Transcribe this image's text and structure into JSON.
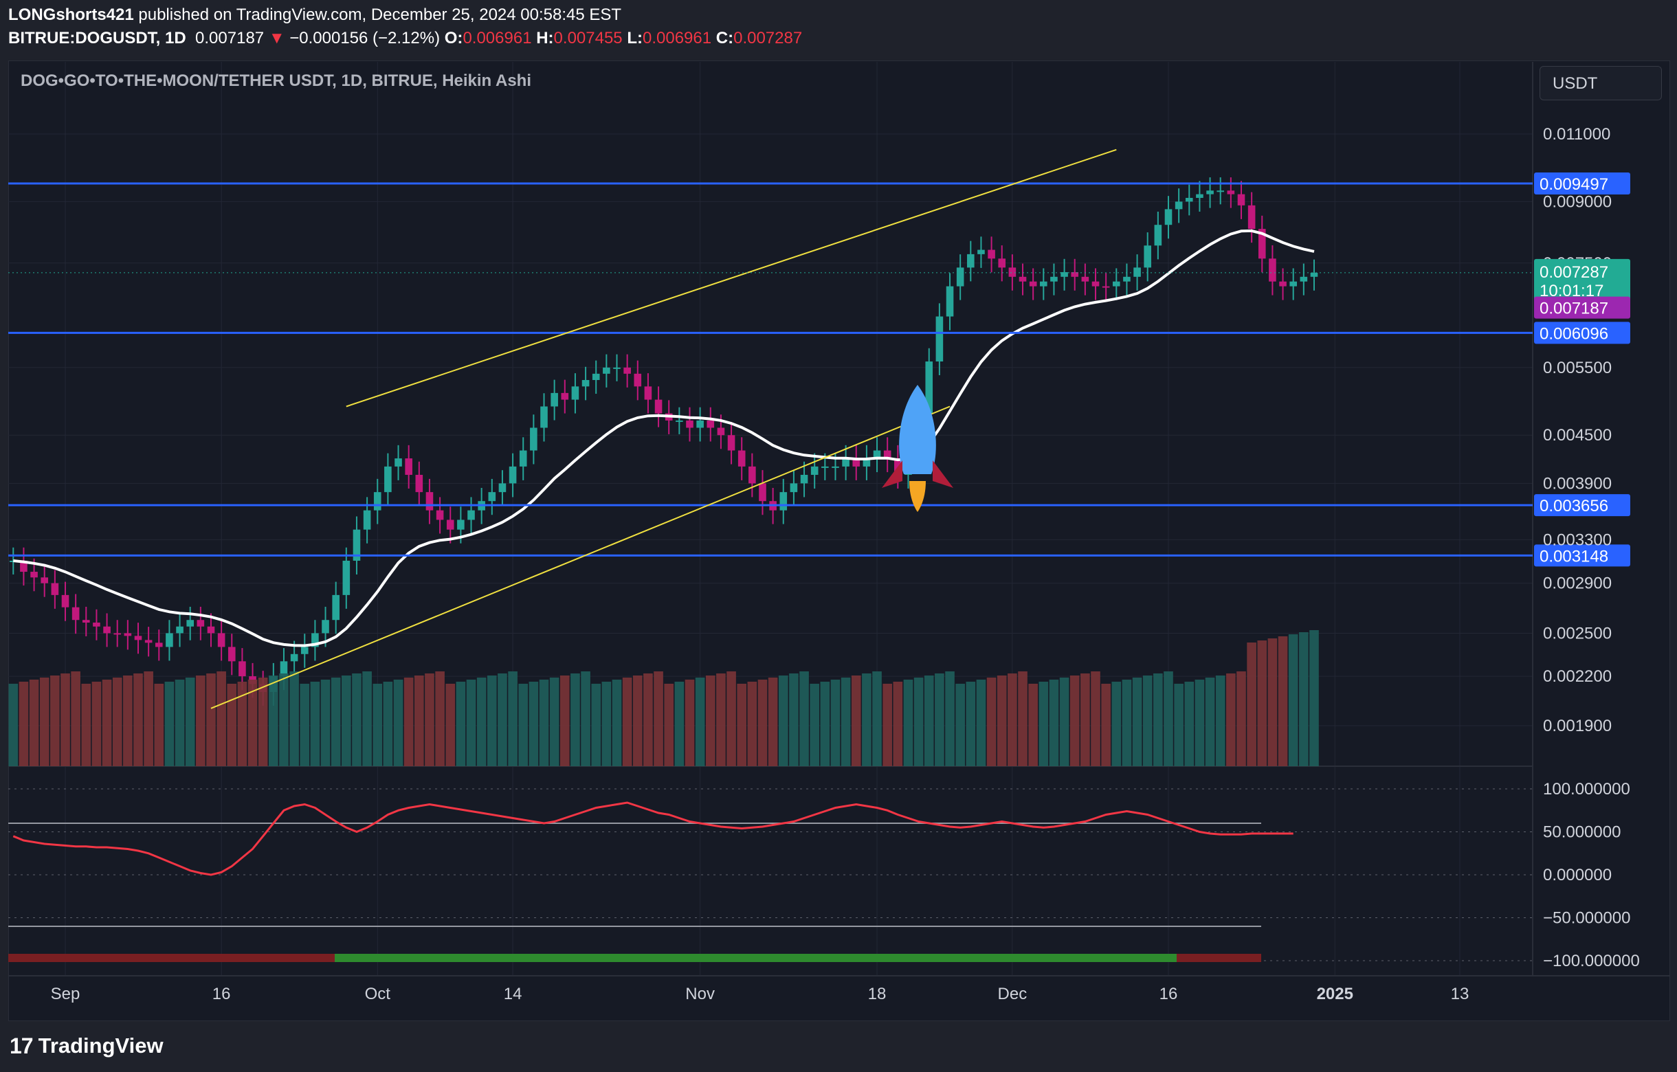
{
  "header": {
    "author": "LONGshorts421",
    "published_text": "published on TradingView.com, December 25, 2024 00:58:45 EST",
    "symbol": "BITRUE:DOGUSDT, 1D",
    "last": "0.007187",
    "change_arrow": "▼",
    "change": "−0.000156 (−2.12%)",
    "o_label": "O:",
    "o": "0.006961",
    "h_label": "H:",
    "h": "0.007455",
    "l_label": "L:",
    "l": "0.006961",
    "c_label": "C:",
    "c": "0.007287"
  },
  "chart_title": "DOG•GO•TO•THE•MOON/TETHER USDT, 1D, BITRUE, Heikin Ashi",
  "currency": "USDT",
  "footer": {
    "logo": "17",
    "brand": "TradingView"
  },
  "colors": {
    "bull": "#26a69a",
    "bear": "#c2187c",
    "level": "#2962ff",
    "trend": "#f0e040",
    "bg": "#161a25"
  },
  "chart_data": [
    {
      "type": "candlestick",
      "subtype": "Heikin Ashi",
      "title": "DOG•GO•TO•THE•MOON/TETHER USDT, 1D, BITRUE, Heikin Ashi",
      "y_scale": "log",
      "y_ticks": [
        0.0019,
        0.0022,
        0.0025,
        0.0029,
        0.0033,
        0.0039,
        0.0045,
        0.0055,
        0.0075,
        0.009,
        0.011
      ],
      "y_tick_labels": [
        "0.001900",
        "0.002200",
        "0.002500",
        "0.002900",
        "0.003300",
        "0.003900",
        "0.004500",
        "0.005500",
        "0.007500",
        "0.009000",
        "0.011000"
      ],
      "x_tick_labels": [
        "Sep",
        "16",
        "Oct",
        "14",
        "Nov",
        "18",
        "Dec",
        "16",
        "2025",
        "13"
      ],
      "x_tick_dates": [
        "2024-09-01",
        "2024-09-16",
        "2024-10-01",
        "2024-10-14",
        "2024-11-01",
        "2024-11-18",
        "2024-12-01",
        "2024-12-16",
        "2025-01-01",
        "2025-01-13"
      ],
      "horizontal_levels": [
        0.009497,
        0.006096,
        0.003656,
        0.003148
      ],
      "level_labels": [
        "0.009497",
        "0.006096",
        "0.003656",
        "0.003148"
      ],
      "price_labels": [
        {
          "value": 0.007287,
          "text": "0.007287",
          "countdown": "10:01:17",
          "color": "#22ab94"
        },
        {
          "value": 0.007187,
          "text": "0.007187",
          "color": "#9c27b0"
        }
      ],
      "last_close": 0.007287,
      "close_series_start": "2024-08-27",
      "close": [
        0.0031,
        0.003,
        0.00295,
        0.0029,
        0.0028,
        0.0027,
        0.0026,
        0.00258,
        0.00255,
        0.0025,
        0.0025,
        0.00248,
        0.00245,
        0.00243,
        0.0024,
        0.0025,
        0.00255,
        0.0026,
        0.00255,
        0.0025,
        0.0024,
        0.0023,
        0.0022,
        0.00215,
        0.0021,
        0.0022,
        0.0023,
        0.00235,
        0.0024,
        0.0025,
        0.0026,
        0.0028,
        0.0031,
        0.0034,
        0.0036,
        0.0038,
        0.0041,
        0.0042,
        0.004,
        0.0038,
        0.0036,
        0.0035,
        0.0034,
        0.0035,
        0.0036,
        0.0037,
        0.0038,
        0.0039,
        0.0041,
        0.0043,
        0.0046,
        0.0049,
        0.0051,
        0.005,
        0.0052,
        0.0053,
        0.0054,
        0.0055,
        0.0055,
        0.0054,
        0.0052,
        0.005,
        0.0048,
        0.0047,
        0.0047,
        0.0046,
        0.0047,
        0.0046,
        0.0045,
        0.0043,
        0.0041,
        0.0039,
        0.0037,
        0.0036,
        0.0038,
        0.0039,
        0.004,
        0.0041,
        0.0041,
        0.0041,
        0.0042,
        0.0041,
        0.0042,
        0.0043,
        0.0042,
        0.004,
        0.0043,
        0.0048,
        0.0056,
        0.0064,
        0.007,
        0.0074,
        0.0077,
        0.0078,
        0.0076,
        0.0074,
        0.0072,
        0.0071,
        0.007,
        0.0071,
        0.0072,
        0.0073,
        0.0072,
        0.0071,
        0.007,
        0.007,
        0.0071,
        0.0072,
        0.0074,
        0.0079,
        0.0084,
        0.0088,
        0.009,
        0.0091,
        0.0092,
        0.0093,
        0.0093,
        0.0092,
        0.0089,
        0.0083,
        0.0076,
        0.0071,
        0.007,
        0.0071,
        0.0072,
        0.007287
      ],
      "volume_colors_note": "volume bars coloured by candle direction"
    },
    {
      "type": "line",
      "title": "",
      "y_ticks": [
        100,
        50,
        0,
        -50,
        -100
      ],
      "y_tick_labels": [
        "100.000000",
        "50.000000",
        "0.000000",
        "−50.000000",
        "−100.000000"
      ],
      "overbought": 60,
      "oversold": -60,
      "series": [
        {
          "values": [
            45,
            40,
            38,
            36,
            35,
            34,
            33,
            33,
            32,
            32,
            31,
            30,
            28,
            25,
            20,
            15,
            10,
            5,
            2,
            0,
            3,
            10,
            20,
            30,
            45,
            60,
            75,
            80,
            82,
            78,
            70,
            62,
            55,
            50,
            55,
            62,
            70,
            75,
            78,
            80,
            82,
            80,
            78,
            76,
            74,
            72,
            70,
            68,
            66,
            64,
            62,
            60,
            62,
            66,
            70,
            74,
            78,
            80,
            82,
            84,
            80,
            76,
            72,
            70,
            66,
            62,
            60,
            58,
            56,
            55,
            54,
            55,
            56,
            58,
            60,
            62,
            66,
            70,
            74,
            78,
            80,
            82,
            80,
            78,
            75,
            70,
            66,
            62,
            60,
            58,
            56,
            55,
            56,
            58,
            60,
            62,
            60,
            58,
            56,
            55,
            56,
            58,
            60,
            62,
            66,
            70,
            72,
            74,
            72,
            70,
            66,
            62,
            58,
            54,
            50,
            48,
            47,
            47,
            47,
            48,
            48,
            48,
            48,
            48
          ]
        }
      ]
    }
  ]
}
